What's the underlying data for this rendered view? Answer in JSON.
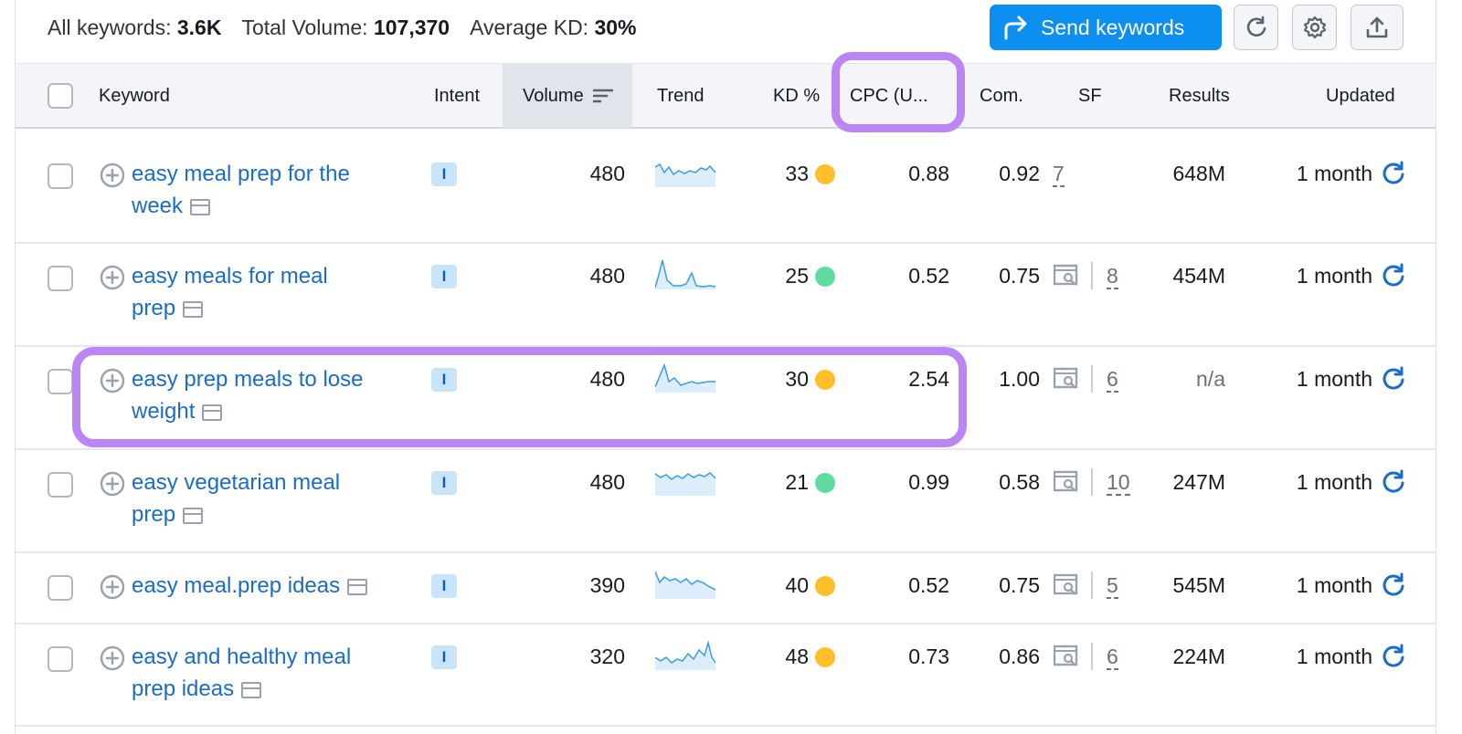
{
  "summary": {
    "all_keywords_label": "All keywords:",
    "all_keywords_value": "3.6K",
    "total_volume_label": "Total Volume:",
    "total_volume_value": "107,370",
    "avg_kd_label": "Average KD:",
    "avg_kd_value": "30%"
  },
  "toolbar": {
    "send_label": "Send keywords"
  },
  "columns": {
    "keyword": "Keyword",
    "intent": "Intent",
    "volume": "Volume",
    "trend": "Trend",
    "kd": "KD %",
    "cpc": "CPC (U...",
    "com": "Com.",
    "sf": "SF",
    "results": "Results",
    "updated": "Updated"
  },
  "rows": [
    {
      "kw1": "easy meal prep for the",
      "kw2": "week",
      "intent": "I",
      "volume": "480",
      "kd": "33",
      "kd_color": "#ffbf2b",
      "cpc": "0.88",
      "com": "0.92",
      "sf": "7",
      "sf_icon": false,
      "results": "648M",
      "updated": "1 month"
    },
    {
      "kw1": "easy meals for meal",
      "kw2": "prep",
      "intent": "I",
      "volume": "480",
      "kd": "25",
      "kd_color": "#5fdba0",
      "cpc": "0.52",
      "com": "0.75",
      "sf": "8",
      "sf_icon": true,
      "results": "454M",
      "updated": "1 month"
    },
    {
      "kw1": "easy prep meals to lose",
      "kw2": "weight",
      "intent": "I",
      "volume": "480",
      "kd": "30",
      "kd_color": "#ffbf2b",
      "cpc": "2.54",
      "com": "1.00",
      "sf": "6",
      "sf_icon": true,
      "results": "n/a",
      "updated": "1 month"
    },
    {
      "kw1": "easy vegetarian meal",
      "kw2": "prep",
      "intent": "I",
      "volume": "480",
      "kd": "21",
      "kd_color": "#5fdba0",
      "cpc": "0.99",
      "com": "0.58",
      "sf": "10",
      "sf_icon": true,
      "results": "247M",
      "updated": "1 month"
    },
    {
      "kw1": "easy meal.prep ideas",
      "kw2": "",
      "intent": "I",
      "volume": "390",
      "kd": "40",
      "kd_color": "#ffbf2b",
      "cpc": "0.52",
      "com": "0.75",
      "sf": "5",
      "sf_icon": true,
      "results": "545M",
      "updated": "1 month"
    },
    {
      "kw1": "easy and healthy meal",
      "kw2": "prep ideas",
      "intent": "I",
      "volume": "320",
      "kd": "48",
      "kd_color": "#ffbf2b",
      "cpc": "0.73",
      "com": "0.86",
      "sf": "6",
      "sf_icon": true,
      "results": "224M",
      "updated": "1 month"
    }
  ],
  "colors": {
    "accent": "#0d8ff2",
    "link": "#1a6cc5",
    "highlight": "#bb86f3"
  }
}
